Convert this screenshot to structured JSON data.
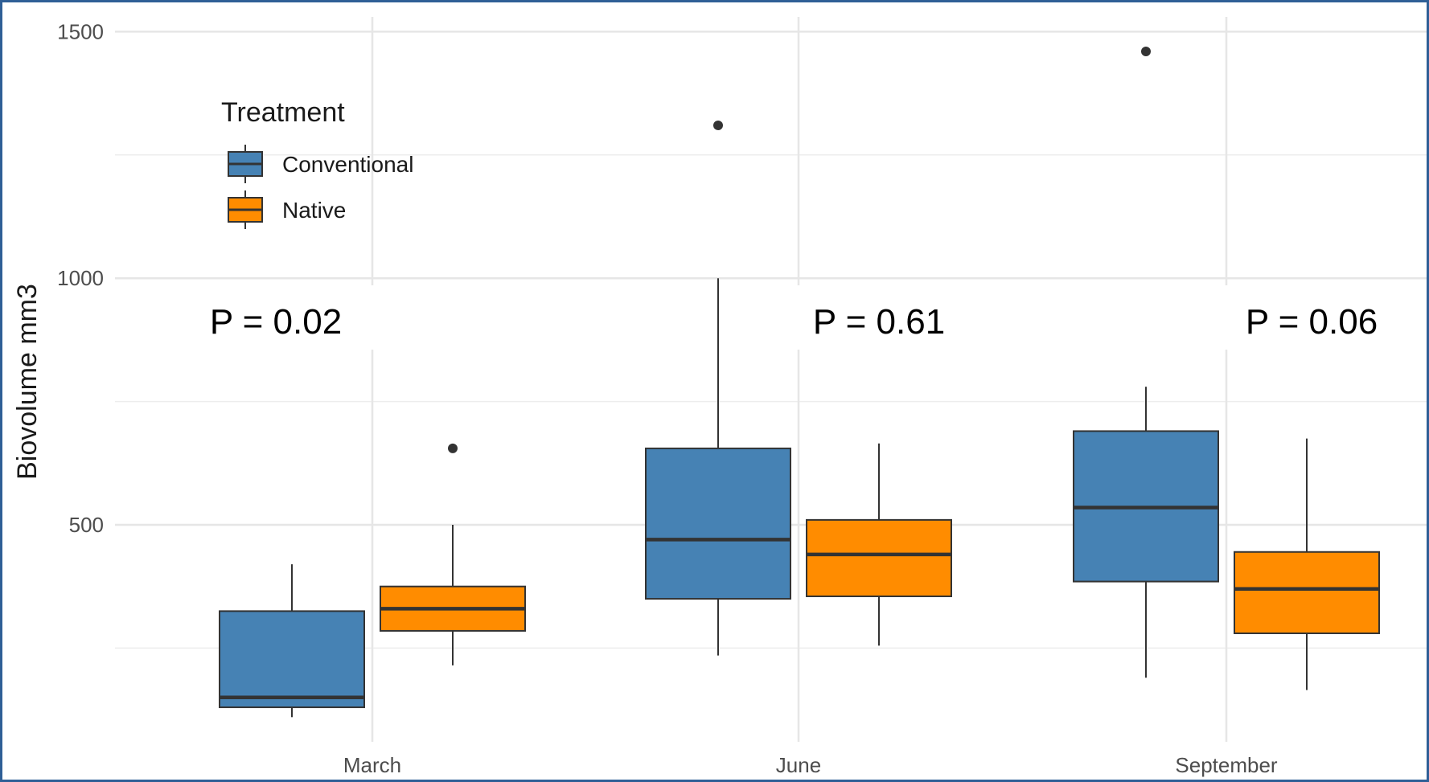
{
  "chart_data": {
    "type": "boxplot",
    "categories": [
      "March",
      "June",
      "September"
    ],
    "ylabel": "Biovolume mm3",
    "ylim": [
      60,
      1530
    ],
    "yticks": [
      500,
      1000,
      1500
    ],
    "grid": true,
    "legend": {
      "title": "Treatment",
      "placement": "top-left",
      "entries": [
        "Conventional",
        "Native"
      ]
    },
    "series": [
      {
        "name": "Conventional",
        "color": "#4682b4",
        "boxes": [
          {
            "category": "March",
            "whisker_low": 110,
            "q1": 130,
            "median": 150,
            "q3": 325,
            "whisker_high": 420,
            "outliers": []
          },
          {
            "category": "June",
            "whisker_low": 235,
            "q1": 350,
            "median": 470,
            "q3": 655,
            "whisker_high": 1000,
            "outliers": [
              1310
            ]
          },
          {
            "category": "September",
            "whisker_low": 190,
            "q1": 385,
            "median": 535,
            "q3": 690,
            "whisker_high": 780,
            "outliers": [
              1460
            ]
          }
        ]
      },
      {
        "name": "Native",
        "color": "#ff8c00",
        "boxes": [
          {
            "category": "March",
            "whisker_low": 215,
            "q1": 285,
            "median": 330,
            "q3": 375,
            "whisker_high": 500,
            "outliers": [
              655
            ]
          },
          {
            "category": "June",
            "whisker_low": 255,
            "q1": 355,
            "median": 440,
            "q3": 510,
            "whisker_high": 665,
            "outliers": []
          },
          {
            "category": "September",
            "whisker_low": 165,
            "q1": 280,
            "median": 370,
            "q3": 445,
            "whisker_high": 675,
            "outliers": []
          }
        ]
      }
    ],
    "annotations": [
      "P = 0.02",
      "P = 0.61",
      "P = 0.06"
    ]
  }
}
